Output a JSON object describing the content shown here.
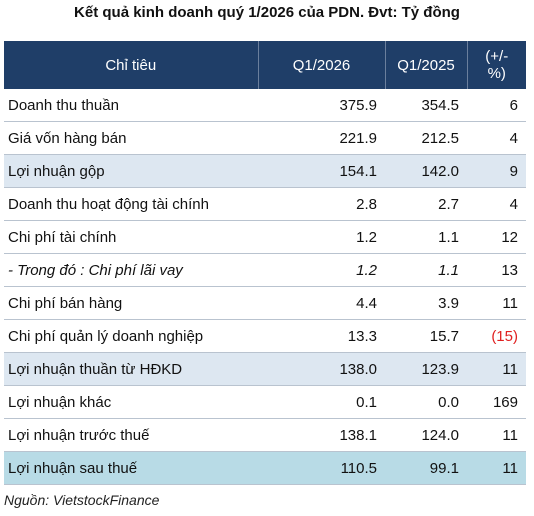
{
  "title": "Kết quả kinh doanh quý 1/2026 của PDN. Đvt: Tỷ đồng",
  "table": {
    "headers": [
      "Chỉ tiêu",
      "Q1/2026",
      "Q1/2025",
      "(+/- %)"
    ],
    "rows": [
      {
        "label": "Doanh thu thuần",
        "q1_2026": "375.9",
        "q1_2025": "354.5",
        "change": "6"
      },
      {
        "label": "Giá vốn hàng bán",
        "q1_2026": "221.9",
        "q1_2025": "212.5",
        "change": "4"
      },
      {
        "label": "Lợi nhuận gộp",
        "q1_2026": "154.1",
        "q1_2025": "142.0",
        "change": "9"
      },
      {
        "label": "Doanh thu hoạt động tài chính",
        "q1_2026": "2.8",
        "q1_2025": "2.7",
        "change": "4"
      },
      {
        "label": "Chi phí tài chính",
        "q1_2026": "1.2",
        "q1_2025": "1.1",
        "change": "12"
      },
      {
        "label": "- Trong đó : Chi phí lãi vay",
        "q1_2026": "1.2",
        "q1_2025": "1.1",
        "change": "13"
      },
      {
        "label": "Chi phí bán hàng",
        "q1_2026": "4.4",
        "q1_2025": "3.9",
        "change": "11"
      },
      {
        "label": "Chi phí quản lý doanh nghiệp",
        "q1_2026": "13.3",
        "q1_2025": "15.7",
        "change": "(15)"
      },
      {
        "label": "Lợi nhuận thuần từ HĐKD",
        "q1_2026": "138.0",
        "q1_2025": "123.9",
        "change": "11"
      },
      {
        "label": "Lợi nhuận khác",
        "q1_2026": "0.1",
        "q1_2025": "0.0",
        "change": "169"
      },
      {
        "label": "Lợi nhuận trước thuế",
        "q1_2026": "138.1",
        "q1_2025": "124.0",
        "change": "11"
      },
      {
        "label": "Lợi nhuận sau thuế",
        "q1_2026": "110.5",
        "q1_2025": "99.1",
        "change": "11"
      }
    ]
  },
  "source": "Nguồn: VietstockFinance",
  "colors": {
    "header_bg": "#1f3e68",
    "highlight_row": "#dde7f1",
    "final_row": "#b8dbe6",
    "negative": "#e02020"
  }
}
